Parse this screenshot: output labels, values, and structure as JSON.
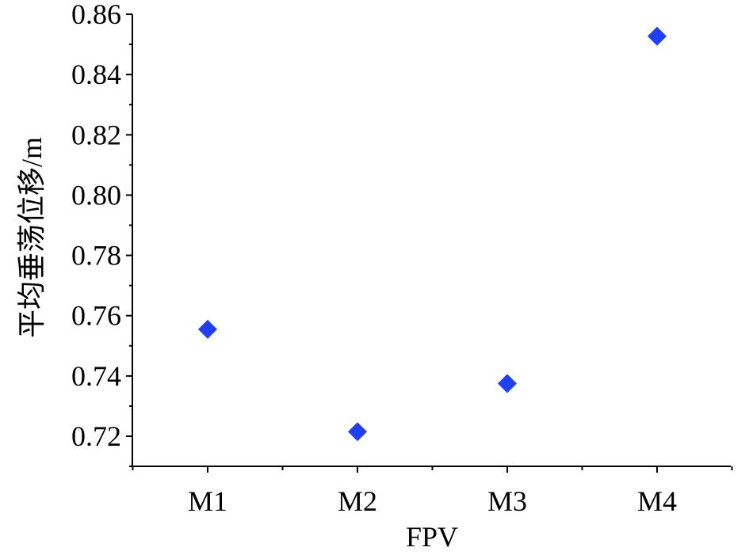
{
  "chart_data": {
    "type": "scatter",
    "xlabel": "FPV",
    "ylabel": "平均垂荡位移/m",
    "categories": [
      "M1",
      "M2",
      "M3",
      "M4"
    ],
    "series": [
      {
        "values": [
          0.7555,
          0.7215,
          0.7375,
          0.8527
        ]
      }
    ],
    "ylim": [
      0.71,
      0.86
    ],
    "y_ticks": [
      "0.72",
      "0.74",
      "0.76",
      "0.78",
      "0.80",
      "0.82",
      "0.84",
      "0.86"
    ],
    "grid": false,
    "marker": "diamond",
    "colors": {
      "marker": "#1f3ff5",
      "axis": "#000000"
    }
  }
}
